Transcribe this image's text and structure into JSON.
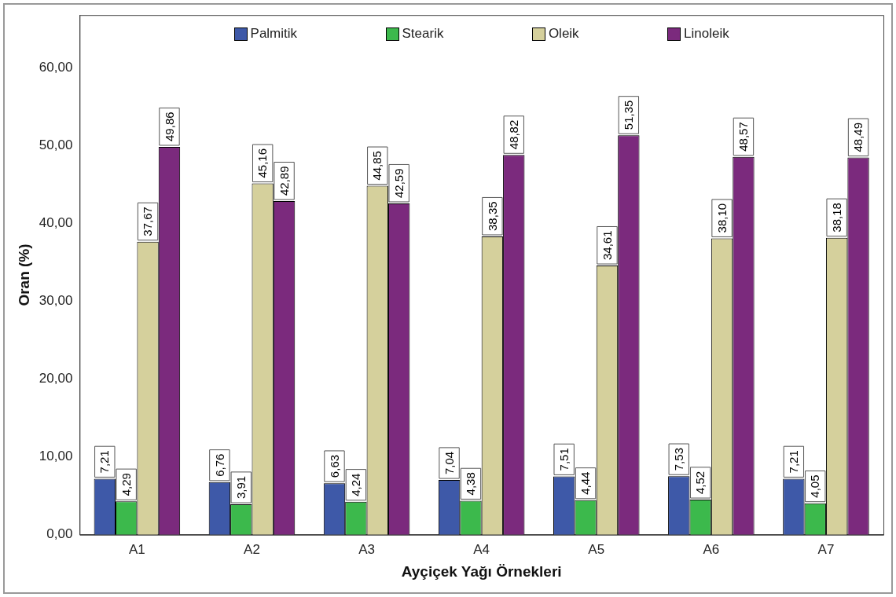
{
  "chart_data": {
    "type": "bar",
    "xlabel": "Ayçiçek Yağı Örnekleri",
    "ylabel": "Oran (%)",
    "categories": [
      "A1",
      "A2",
      "A3",
      "A4",
      "A5",
      "A6",
      "A7"
    ],
    "series": [
      {
        "name": "Palmitik",
        "color": "#3e59a8",
        "values": [
          7.21,
          6.76,
          6.63,
          7.04,
          7.51,
          7.53,
          7.21
        ],
        "value_labels": [
          "7,21",
          "6,76",
          "6,63",
          "7,04",
          "7,51",
          "7,53",
          "7,21"
        ]
      },
      {
        "name": "Stearik",
        "color": "#3cb94c",
        "values": [
          4.29,
          3.91,
          4.24,
          4.38,
          4.44,
          4.52,
          4.05
        ],
        "value_labels": [
          "4,29",
          "3,91",
          "4,24",
          "4,38",
          "4,44",
          "4,52",
          "4,05"
        ]
      },
      {
        "name": "Oleik",
        "color": "#d5d09c",
        "values": [
          37.67,
          45.16,
          44.85,
          38.35,
          34.61,
          38.1,
          38.18
        ],
        "value_labels": [
          "37,67",
          "45,16",
          "44,85",
          "38,35",
          "34,61",
          "38,10",
          "38,18"
        ]
      },
      {
        "name": "Linoleik",
        "color": "#7b2a7d",
        "values": [
          49.86,
          42.89,
          42.59,
          48.82,
          51.35,
          48.57,
          48.49
        ],
        "value_labels": [
          "49,86",
          "42,89",
          "42,59",
          "48,82",
          "51,35",
          "48,57",
          "48,49"
        ]
      }
    ],
    "ylim": [
      0,
      66.8
    ],
    "yticks": [
      {
        "value": 0,
        "label": "0,00"
      },
      {
        "value": 10,
        "label": "10,00"
      },
      {
        "value": 20,
        "label": "20,00"
      },
      {
        "value": 30,
        "label": "30,00"
      },
      {
        "value": 40,
        "label": "40,00"
      },
      {
        "value": 50,
        "label": "50,00"
      },
      {
        "value": 60,
        "label": "60,00"
      }
    ],
    "grid": false,
    "legend": "top"
  }
}
